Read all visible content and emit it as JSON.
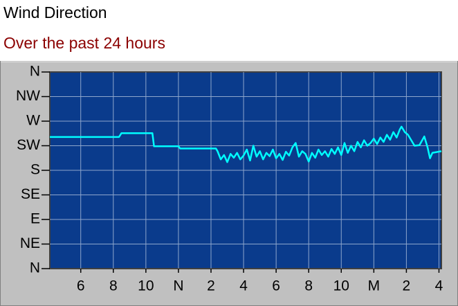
{
  "chart_data": {
    "type": "line",
    "title": "Wind Direction",
    "subtitle": "Over the past 24 hours",
    "color": "#00ffff",
    "grid": true,
    "xlim": [
      4.1,
      28.15
    ],
    "xticks": [
      6,
      8,
      10,
      {
        "value": 12,
        "label": "N"
      },
      {
        "value": 14,
        "label": "2"
      },
      {
        "value": 16,
        "label": "4"
      },
      {
        "value": 18,
        "label": "6"
      },
      {
        "value": 20,
        "label": "8"
      },
      {
        "value": 22,
        "label": "10"
      },
      {
        "value": 24,
        "label": "M"
      },
      {
        "value": 26,
        "label": "2"
      },
      {
        "value": 28,
        "label": "4"
      }
    ],
    "ylim": [
      0,
      360
    ],
    "yticks": [
      {
        "value": 0,
        "label": "N"
      },
      {
        "value": 45,
        "label": "NE"
      },
      {
        "value": 90,
        "label": "E"
      },
      {
        "value": 135,
        "label": "SE"
      },
      {
        "value": 180,
        "label": "S"
      },
      {
        "value": 225,
        "label": "SW"
      },
      {
        "value": 270,
        "label": "W"
      },
      {
        "value": 315,
        "label": "NW"
      },
      {
        "value": 360,
        "label": "N"
      }
    ],
    "x": [
      4.1,
      8.35,
      8.5,
      10.4,
      10.5,
      12.0,
      12.1,
      14.3,
      14.4,
      14.6,
      14.8,
      15.0,
      15.2,
      15.4,
      15.6,
      15.8,
      16.0,
      16.2,
      16.4,
      16.6,
      16.8,
      17.0,
      17.2,
      17.4,
      17.6,
      17.8,
      18.0,
      18.2,
      18.4,
      18.6,
      18.8,
      19.0,
      19.2,
      19.4,
      19.6,
      19.8,
      20.0,
      20.2,
      20.4,
      20.6,
      20.8,
      21.0,
      21.2,
      21.4,
      21.6,
      21.8,
      22.0,
      22.2,
      22.4,
      22.6,
      22.8,
      23.0,
      23.2,
      23.4,
      23.6,
      23.8,
      24.0,
      24.2,
      24.4,
      24.6,
      24.8,
      25.0,
      25.2,
      25.4,
      25.6,
      25.7,
      25.9,
      26.1,
      26.3,
      26.5,
      26.8,
      27.1,
      27.3,
      27.45,
      27.6,
      28.15
    ],
    "values": [
      241,
      241,
      248,
      248,
      224,
      224,
      220,
      220,
      215,
      200,
      208,
      195,
      210,
      203,
      212,
      200,
      207,
      218,
      198,
      225,
      205,
      215,
      200,
      212,
      206,
      218,
      202,
      210,
      199,
      214,
      207,
      222,
      230,
      205,
      215,
      210,
      196,
      212,
      203,
      218,
      208,
      215,
      205,
      219,
      210,
      222,
      208,
      230,
      212,
      225,
      215,
      232,
      222,
      235,
      225,
      230,
      238,
      228,
      240,
      232,
      245,
      236,
      250,
      240,
      255,
      260,
      250,
      245,
      235,
      225,
      226,
      242,
      222,
      202,
      212,
      215
    ]
  }
}
